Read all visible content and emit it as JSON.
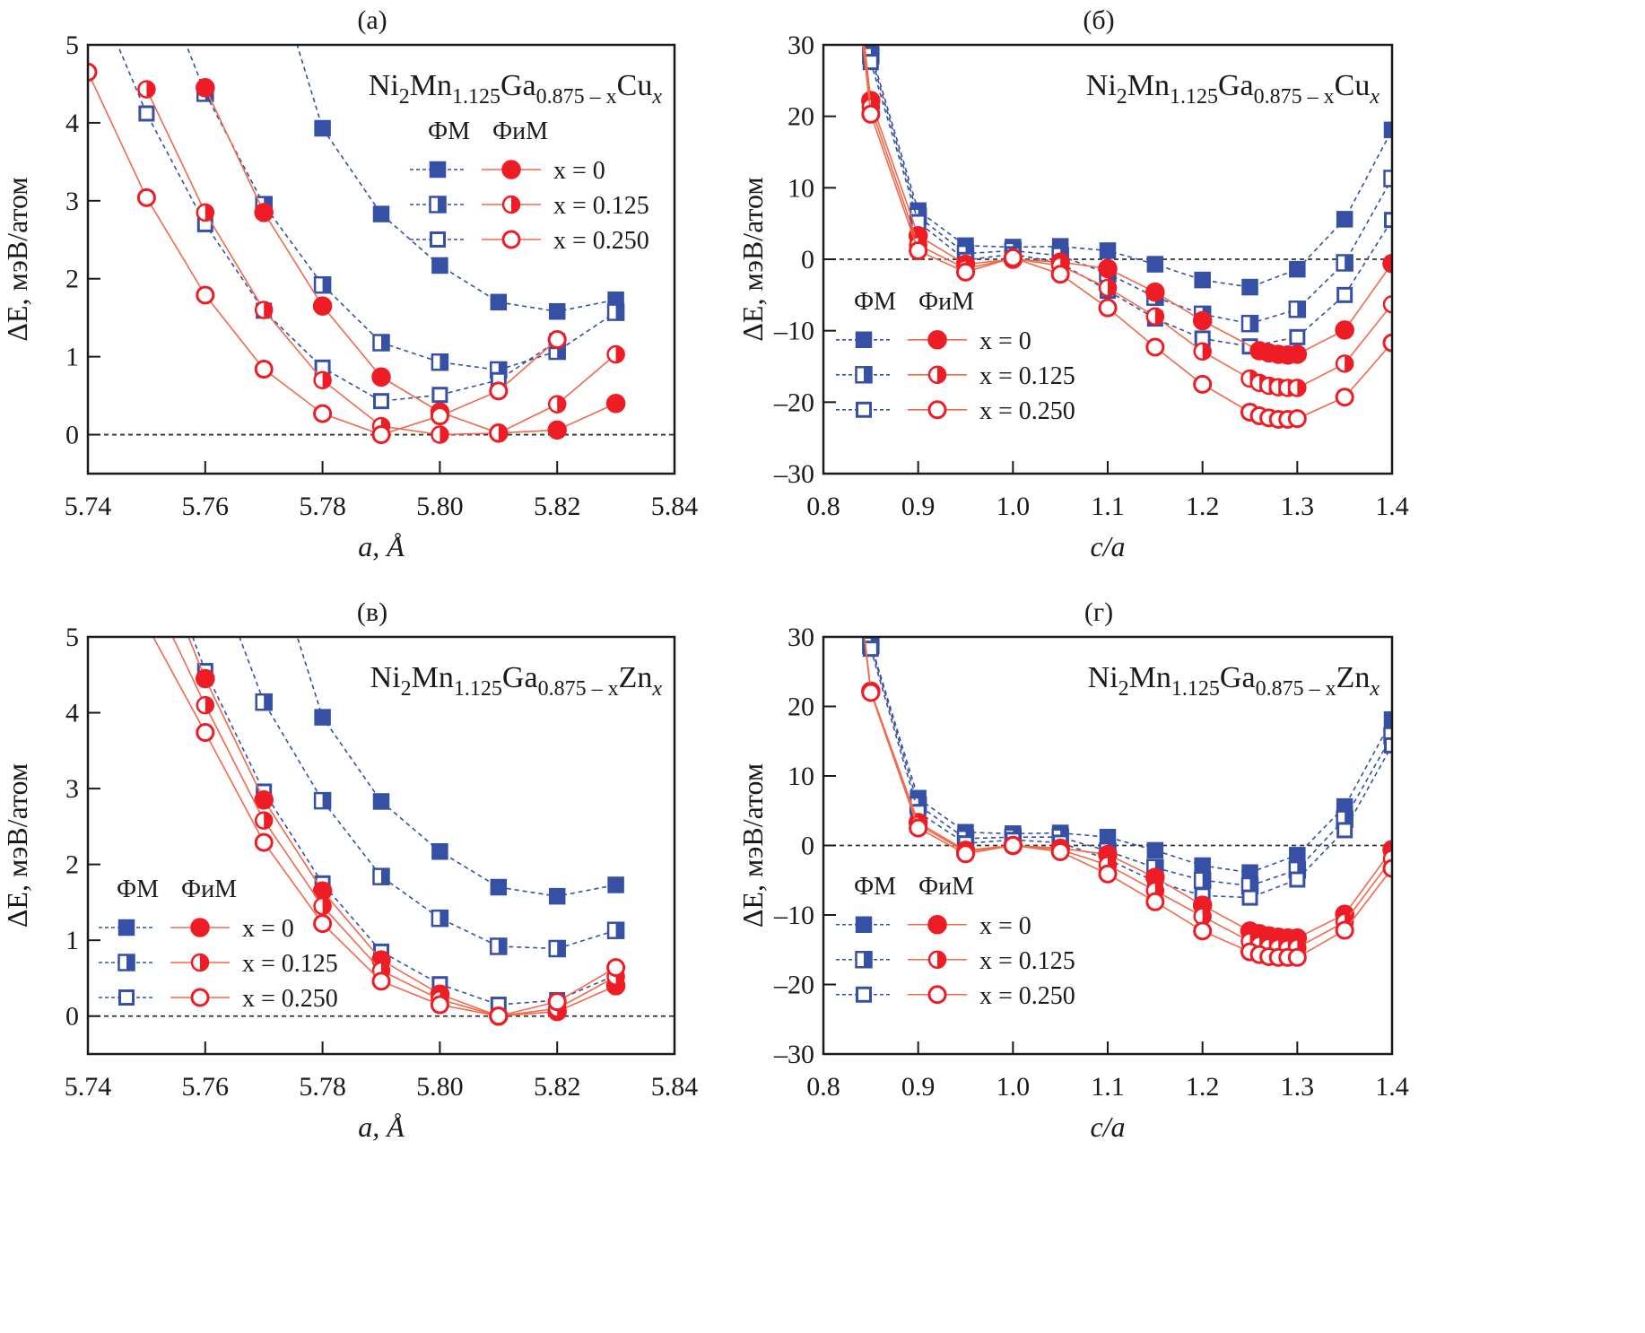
{
  "colors": {
    "fm": "#3550a5",
    "fim": "#ee1c25",
    "fim_line": "#f26a4b",
    "axis": "#1a1a1a",
    "zero_line": "#333333"
  },
  "legend": {
    "header_fm": "ФМ",
    "header_fim": "ФиМ",
    "entries": [
      "x = 0",
      "x = 0.125",
      "x = 0.250"
    ]
  },
  "chart_data": [
    {
      "id": "a",
      "panel_label": "(а)",
      "type": "line",
      "formula": {
        "base": "Ni",
        "s1": "2",
        "m": "Mn",
        "s2": "1.125",
        "g": "Ga",
        "s3": "0.875 – x",
        "dop": "Cu",
        "s4": "x"
      },
      "xlabel": "a, Å",
      "ylabel": "ΔE, мэВ/атом",
      "xlim": [
        5.74,
        5.84
      ],
      "ylim": [
        -0.5,
        5
      ],
      "xticks": [
        5.74,
        5.76,
        5.78,
        5.8,
        5.82,
        5.84
      ],
      "xtick_labels": [
        "5.74",
        "5.76",
        "5.78",
        "5.80",
        "5.82",
        "5.84"
      ],
      "yticks": [
        0,
        1,
        2,
        3,
        4,
        5
      ],
      "ytick_labels": [
        "0",
        "1",
        "2",
        "3",
        "4",
        "5"
      ],
      "zero_line": true,
      "legend_position": "top-right",
      "series": [
        {
          "name": "ФМ x = 0",
          "kind": "fm",
          "fill": "full",
          "x": [
            5.77,
            5.78,
            5.79,
            5.8,
            5.81,
            5.82,
            5.83
          ],
          "y": [
            6.4,
            3.93,
            2.83,
            2.17,
            1.7,
            1.58,
            1.73
          ],
          "marker_from": 1
        },
        {
          "name": "ФМ x = 0.125",
          "kind": "fm",
          "fill": "half",
          "x": [
            5.75,
            5.76,
            5.77,
            5.78,
            5.79,
            5.8,
            5.81,
            5.82,
            5.83
          ],
          "y": [
            6.3,
            4.38,
            2.95,
            1.92,
            1.18,
            0.93,
            0.83,
            1.07,
            1.57
          ],
          "marker_from": 1
        },
        {
          "name": "ФМ x = 0.250",
          "kind": "fm",
          "fill": "open",
          "x": [
            5.74,
            5.75,
            5.76,
            5.77,
            5.78,
            5.79,
            5.8,
            5.81,
            5.82
          ],
          "y": [
            5.9,
            4.12,
            2.7,
            1.59,
            0.86,
            0.43,
            0.51,
            0.7,
            1.2
          ],
          "marker_from": 1
        },
        {
          "name": "ФиМ x = 0",
          "kind": "fim",
          "fill": "full",
          "x": [
            5.76,
            5.77,
            5.78,
            5.79,
            5.8,
            5.81,
            5.82,
            5.83
          ],
          "y": [
            4.45,
            2.85,
            1.65,
            0.74,
            0.29,
            0.02,
            0.06,
            0.4
          ],
          "marker_from": 0
        },
        {
          "name": "ФиМ x = 0.125",
          "kind": "fim",
          "fill": "half",
          "x": [
            5.75,
            5.76,
            5.77,
            5.78,
            5.79,
            5.8,
            5.81,
            5.82,
            5.83
          ],
          "y": [
            4.43,
            2.85,
            1.6,
            0.7,
            0.11,
            0.0,
            0.02,
            0.39,
            1.03
          ],
          "marker_from": 0
        },
        {
          "name": "ФиМ x = 0.250",
          "kind": "fim",
          "fill": "open",
          "x": [
            5.74,
            5.75,
            5.76,
            5.77,
            5.78,
            5.79,
            5.8,
            5.81,
            5.82
          ],
          "y": [
            4.65,
            3.04,
            1.79,
            0.84,
            0.27,
            0.0,
            0.24,
            0.56,
            1.22
          ],
          "marker_from": 0
        }
      ]
    },
    {
      "id": "b",
      "panel_label": "(б)",
      "type": "line",
      "formula": {
        "base": "Ni",
        "s1": "2",
        "m": "Mn",
        "s2": "1.125",
        "g": "Ga",
        "s3": "0.875 – x",
        "dop": "Cu",
        "s4": "x"
      },
      "xlabel": "c/a",
      "ylabel": "ΔE, мэВ/атом",
      "xlim": [
        0.8,
        1.4
      ],
      "ylim": [
        -30,
        30
      ],
      "xticks": [
        0.8,
        0.9,
        1.0,
        1.1,
        1.2,
        1.3,
        1.4
      ],
      "xtick_labels": [
        "0.8",
        "0.9",
        "1.0",
        "1.1",
        "1.2",
        "1.3",
        "1.4"
      ],
      "yticks": [
        -30,
        -20,
        -10,
        0,
        10,
        20,
        30
      ],
      "ytick_labels": [
        "–30",
        "–20",
        "–10",
        "0",
        "10",
        "20",
        "30"
      ],
      "zero_line": true,
      "legend_position": "center-left",
      "series": [
        {
          "name": "ФМ x = 0",
          "kind": "fm",
          "fill": "full",
          "x": [
            0.85,
            0.9,
            0.95,
            1.0,
            1.05,
            1.1,
            1.15,
            1.2,
            1.25,
            1.3,
            1.35,
            1.4
          ],
          "y": [
            29.0,
            6.8,
            1.9,
            1.7,
            1.8,
            1.2,
            -0.7,
            -2.9,
            -3.9,
            -1.4,
            5.6,
            18.1
          ]
        },
        {
          "name": "ФМ x = 0.125",
          "kind": "fm",
          "fill": "half",
          "x": [
            0.85,
            0.9,
            0.95,
            1.0,
            1.05,
            1.1,
            1.15,
            1.2,
            1.25,
            1.3,
            1.35,
            1.4
          ],
          "y": [
            28.5,
            6.0,
            0.8,
            1.2,
            0.5,
            -2.0,
            -5.3,
            -7.7,
            -9.0,
            -7.0,
            -0.5,
            11.3
          ]
        },
        {
          "name": "ФМ x = 0.250",
          "kind": "fm",
          "fill": "open",
          "x": [
            0.85,
            0.9,
            0.95,
            1.0,
            1.05,
            1.1,
            1.15,
            1.2,
            1.25,
            1.3,
            1.35,
            1.4
          ],
          "y": [
            27.6,
            5.2,
            -0.1,
            0.7,
            -0.5,
            -4.4,
            -8.3,
            -11.1,
            -12.2,
            -10.9,
            -5.0,
            5.5
          ]
        },
        {
          "name": "ФиМ x = 0",
          "kind": "fim",
          "fill": "full",
          "x": [
            0.84,
            0.85,
            0.9,
            0.95,
            1.0,
            1.05,
            1.1,
            1.15,
            1.2,
            1.26,
            1.27,
            1.28,
            1.29,
            1.3,
            1.35,
            1.4
          ],
          "y": [
            34,
            22.2,
            3.3,
            -0.7,
            0.0,
            -0.4,
            -1.3,
            -4.6,
            -8.6,
            -12.8,
            -13.1,
            -13.3,
            -13.4,
            -13.3,
            -9.9,
            -0.6
          ],
          "marker_from": 1
        },
        {
          "name": "ФиМ x = 0.125",
          "kind": "fim",
          "fill": "half",
          "x": [
            0.84,
            0.85,
            0.9,
            0.95,
            1.0,
            1.05,
            1.1,
            1.15,
            1.2,
            1.25,
            1.26,
            1.27,
            1.28,
            1.29,
            1.3,
            1.35,
            1.4
          ],
          "y": [
            33,
            21.3,
            2.0,
            -1.3,
            0.1,
            -0.9,
            -4.0,
            -8.0,
            -12.9,
            -16.7,
            -17.3,
            -17.7,
            -17.9,
            -18.0,
            -18.0,
            -14.6,
            -6.3
          ],
          "marker_from": 1
        },
        {
          "name": "ФиМ x = 0.250",
          "kind": "fim",
          "fill": "open",
          "x": [
            0.84,
            0.85,
            0.9,
            0.95,
            1.0,
            1.05,
            1.1,
            1.15,
            1.2,
            1.25,
            1.26,
            1.27,
            1.28,
            1.29,
            1.3,
            1.35,
            1.4
          ],
          "y": [
            32,
            20.3,
            1.2,
            -1.8,
            0.2,
            -2.1,
            -6.8,
            -12.3,
            -17.5,
            -21.4,
            -21.9,
            -22.2,
            -22.4,
            -22.4,
            -22.3,
            -19.3,
            -11.7
          ],
          "marker_from": 1
        }
      ]
    },
    {
      "id": "c",
      "panel_label": "(в)",
      "type": "line",
      "formula": {
        "base": "Ni",
        "s1": "2",
        "m": "Mn",
        "s2": "1.125",
        "g": "Ga",
        "s3": "0.875 – x",
        "dop": "Zn",
        "s4": "x"
      },
      "xlabel": "a, Å",
      "ylabel": "ΔE, мэВ/атом",
      "xlim": [
        5.74,
        5.84
      ],
      "ylim": [
        -0.5,
        5
      ],
      "xticks": [
        5.74,
        5.76,
        5.78,
        5.8,
        5.82,
        5.84
      ],
      "xtick_labels": [
        "5.74",
        "5.76",
        "5.78",
        "5.80",
        "5.82",
        "5.84"
      ],
      "yticks": [
        0,
        1,
        2,
        3,
        4,
        5
      ],
      "ytick_labels": [
        "0",
        "1",
        "2",
        "3",
        "4",
        "5"
      ],
      "zero_line": true,
      "legend_position": "bottom-left",
      "series": [
        {
          "name": "ФМ x = 0",
          "kind": "fm",
          "fill": "full",
          "x": [
            5.77,
            5.78,
            5.79,
            5.8,
            5.81,
            5.82,
            5.83
          ],
          "y": [
            6.4,
            3.94,
            2.83,
            2.17,
            1.7,
            1.58,
            1.73
          ],
          "marker_from": 1
        },
        {
          "name": "ФМ x = 0.125",
          "kind": "fm",
          "fill": "half",
          "x": [
            5.76,
            5.77,
            5.78,
            5.79,
            5.8,
            5.81,
            5.82,
            5.83
          ],
          "y": [
            6.2,
            4.14,
            2.84,
            1.84,
            1.29,
            0.92,
            0.89,
            1.13
          ],
          "marker_from": 1
        },
        {
          "name": "ФМ x = 0.250",
          "kind": "fm",
          "fill": "open",
          "x": [
            5.755,
            5.76,
            5.77,
            5.78,
            5.79,
            5.8,
            5.81,
            5.82,
            5.83
          ],
          "y": [
            5.6,
            4.55,
            2.96,
            1.75,
            0.85,
            0.42,
            0.15,
            0.21,
            0.54
          ],
          "marker_from": 1
        },
        {
          "name": "ФиМ x = 0",
          "kind": "fim",
          "fill": "full",
          "x": [
            5.754,
            5.76,
            5.77,
            5.78,
            5.79,
            5.8,
            5.81,
            5.82,
            5.83
          ],
          "y": [
            5.6,
            4.45,
            2.85,
            1.65,
            0.74,
            0.29,
            0.0,
            0.06,
            0.4
          ],
          "marker_from": 1
        },
        {
          "name": "ФиМ x = 0.125",
          "kind": "fim",
          "fill": "half",
          "x": [
            5.752,
            5.76,
            5.77,
            5.78,
            5.79,
            5.8,
            5.81,
            5.82,
            5.83
          ],
          "y": [
            5.4,
            4.1,
            2.58,
            1.45,
            0.6,
            0.22,
            0.0,
            0.1,
            0.52
          ],
          "marker_from": 1
        },
        {
          "name": "ФиМ x = 0.250",
          "kind": "fim",
          "fill": "open",
          "x": [
            5.749,
            5.76,
            5.77,
            5.78,
            5.79,
            5.8,
            5.81,
            5.82,
            5.83
          ],
          "y": [
            5.3,
            3.74,
            2.29,
            1.22,
            0.46,
            0.15,
            0.0,
            0.19,
            0.64
          ],
          "marker_from": 1
        }
      ]
    },
    {
      "id": "d",
      "panel_label": "(г)",
      "type": "line",
      "formula": {
        "base": "Ni",
        "s1": "2",
        "m": "Mn",
        "s2": "1.125",
        "g": "Ga",
        "s3": "0.875 – x",
        "dop": "Zn",
        "s4": "x"
      },
      "xlabel": "c/a",
      "ylabel": "ΔE, мэВ/атом",
      "xlim": [
        0.8,
        1.4
      ],
      "ylim": [
        -30,
        30
      ],
      "xticks": [
        0.8,
        0.9,
        1.0,
        1.1,
        1.2,
        1.3,
        1.4
      ],
      "xtick_labels": [
        "0.8",
        "0.9",
        "1.0",
        "1.1",
        "1.2",
        "1.3",
        "1.4"
      ],
      "yticks": [
        -30,
        -20,
        -10,
        0,
        10,
        20,
        30
      ],
      "ytick_labels": [
        "–30",
        "–20",
        "–10",
        "0",
        "10",
        "20",
        "30"
      ],
      "zero_line": true,
      "legend_position": "center-left",
      "series": [
        {
          "name": "ФМ x = 0",
          "kind": "fm",
          "fill": "full",
          "x": [
            0.85,
            0.9,
            0.95,
            1.0,
            1.05,
            1.1,
            1.15,
            1.2,
            1.25,
            1.3,
            1.35,
            1.4
          ],
          "y": [
            29.0,
            6.8,
            1.9,
            1.7,
            1.8,
            1.2,
            -0.7,
            -2.9,
            -3.9,
            -1.4,
            5.6,
            18.1
          ]
        },
        {
          "name": "ФМ x = 0.125",
          "kind": "fm",
          "fill": "half",
          "x": [
            0.85,
            0.9,
            0.95,
            1.0,
            1.05,
            1.1,
            1.15,
            1.2,
            1.25,
            1.3,
            1.35,
            1.4
          ],
          "y": [
            28.8,
            5.8,
            1.0,
            1.2,
            1.2,
            -0.8,
            -3.2,
            -5.0,
            -5.8,
            -3.5,
            3.8,
            15.8
          ]
        },
        {
          "name": "ФМ x = 0.250",
          "kind": "fm",
          "fill": "open",
          "x": [
            0.85,
            0.9,
            0.95,
            1.0,
            1.05,
            1.1,
            1.15,
            1.2,
            1.25,
            1.3,
            1.35,
            1.4
          ],
          "y": [
            28.3,
            4.8,
            0.3,
            0.8,
            0.4,
            -2.0,
            -5.2,
            -7.2,
            -7.5,
            -4.9,
            2.2,
            14.4
          ]
        },
        {
          "name": "ФиМ x = 0",
          "kind": "fim",
          "fill": "full",
          "x": [
            0.84,
            0.85,
            0.9,
            0.95,
            1.0,
            1.05,
            1.1,
            1.15,
            1.2,
            1.25,
            1.26,
            1.27,
            1.28,
            1.29,
            1.3,
            1.35,
            1.4
          ],
          "y": [
            34,
            22.2,
            3.3,
            -0.7,
            0.0,
            -0.4,
            -1.3,
            -4.6,
            -8.6,
            -12.3,
            -12.7,
            -13.0,
            -13.2,
            -13.3,
            -13.3,
            -9.9,
            -0.6
          ],
          "marker_from": 1
        },
        {
          "name": "ФиМ x = 0.125",
          "kind": "fim",
          "fill": "half",
          "x": [
            0.84,
            0.85,
            0.9,
            0.95,
            1.0,
            1.05,
            1.1,
            1.15,
            1.2,
            1.25,
            1.26,
            1.27,
            1.28,
            1.29,
            1.3,
            1.35,
            1.4
          ],
          "y": [
            34,
            22.1,
            3.0,
            -0.9,
            0.0,
            -0.6,
            -2.8,
            -6.5,
            -10.2,
            -13.8,
            -14.3,
            -14.6,
            -14.7,
            -14.8,
            -14.7,
            -11.0,
            -1.9
          ],
          "marker_from": 1
        },
        {
          "name": "ФиМ x = 0.250",
          "kind": "fim",
          "fill": "open",
          "x": [
            0.84,
            0.85,
            0.9,
            0.95,
            1.0,
            1.05,
            1.1,
            1.15,
            1.2,
            1.25,
            1.26,
            1.27,
            1.28,
            1.29,
            1.3,
            1.35,
            1.4
          ],
          "y": [
            34,
            22.0,
            2.5,
            -1.2,
            0.0,
            -0.9,
            -4.1,
            -8.1,
            -12.3,
            -15.3,
            -15.7,
            -16.0,
            -16.1,
            -16.1,
            -16.1,
            -12.2,
            -3.3
          ],
          "marker_from": 1
        }
      ]
    }
  ]
}
